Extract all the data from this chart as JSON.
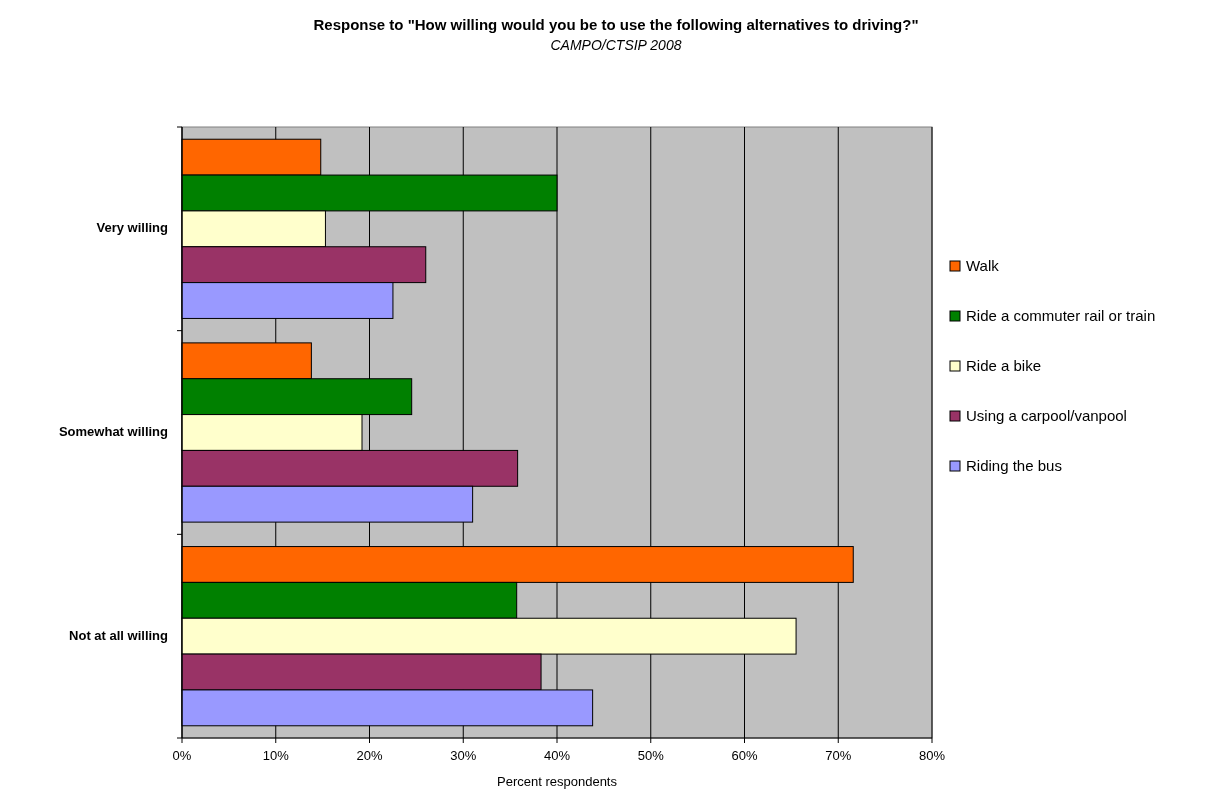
{
  "chart_data": {
    "type": "bar",
    "orientation": "horizontal",
    "title": "Response to \"How willing would you be to use the following alternatives to driving?\"",
    "subtitle": "CAMPO/CTSIP 2008",
    "xlabel": "Percent respondents",
    "categories": [
      "Very willing",
      "Somewhat willing",
      "Not at all willing"
    ],
    "series": [
      {
        "name": "Walk",
        "color": "#ff6600",
        "values": [
          14.8,
          13.8,
          71.6
        ]
      },
      {
        "name": "Ride a commuter rail or train",
        "color": "#008000",
        "values": [
          40.0,
          24.5,
          35.7
        ]
      },
      {
        "name": "Ride a bike",
        "color": "#ffffcc",
        "values": [
          15.3,
          19.2,
          65.5
        ]
      },
      {
        "name": "Using a carpool/vanpool",
        "color": "#993366",
        "values": [
          26.0,
          35.8,
          38.3
        ]
      },
      {
        "name": "Riding the bus",
        "color": "#9999ff",
        "values": [
          22.5,
          31.0,
          43.8
        ]
      }
    ],
    "xlim": [
      0,
      80
    ],
    "xticks": [
      {
        "value": 0,
        "label": "0%"
      },
      {
        "value": 10,
        "label": "10%"
      },
      {
        "value": 20,
        "label": "20%"
      },
      {
        "value": 30,
        "label": "30%"
      },
      {
        "value": 40,
        "label": "40%"
      },
      {
        "value": 50,
        "label": "50%"
      },
      {
        "value": 60,
        "label": "60%"
      },
      {
        "value": 70,
        "label": "70%"
      },
      {
        "value": 80,
        "label": "80%"
      }
    ],
    "grid": "x",
    "legend": "right"
  }
}
